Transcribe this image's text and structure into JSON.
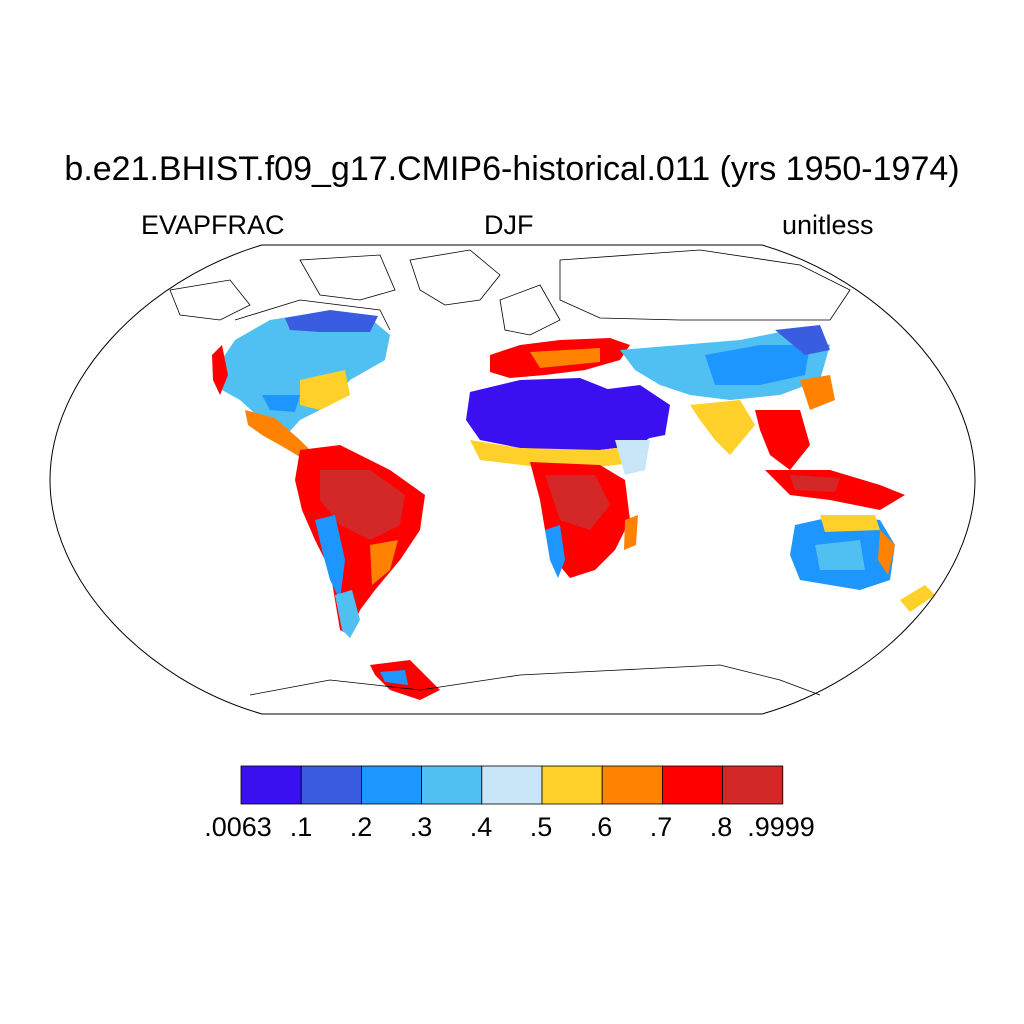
{
  "title": "b.e21.BHIST.f09_g17.CMIP6-historical.011 (yrs 1950-1974)",
  "left_label": "EVAPFRAC",
  "center_label": "DJF",
  "right_label": "unitless",
  "colorbar": {
    "colors": [
      "#3a10f0",
      "#3a5ce0",
      "#1e96ff",
      "#50c0f2",
      "#c8e6f8",
      "#ffd02a",
      "#ff8200",
      "#ff0000",
      "#d42828"
    ],
    "labels": [
      ".0063",
      ".1",
      ".2",
      ".3",
      ".4",
      ".5",
      ".6",
      ".7",
      ".8",
      ".9999"
    ]
  },
  "map_palette": {
    "outline": "#000000",
    "coast": "#000000"
  }
}
